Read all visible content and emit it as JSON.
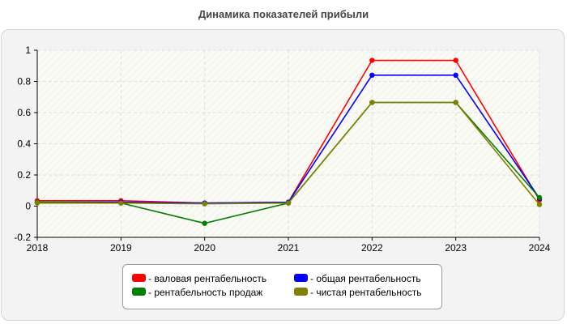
{
  "chart_data": {
    "type": "line",
    "title": "Динамика показателей прибыли",
    "x": [
      "2018",
      "2019",
      "2020",
      "2021",
      "2022",
      "2023",
      "2024"
    ],
    "ylim": [
      -0.2,
      1
    ],
    "yticks": [
      "-0.2",
      "0",
      "0.2",
      "0.4",
      "0.6",
      "0.8",
      "1"
    ],
    "grid": true,
    "legend_position": "bottom",
    "series": [
      {
        "name": "- валовая рентабельность",
        "color": "#ff0000",
        "values": [
          0.035,
          0.035,
          0.02,
          0.025,
          0.935,
          0.935,
          0.04
        ]
      },
      {
        "name": "- общая рентабельность",
        "color": "#0000ff",
        "values": [
          0.025,
          0.025,
          0.02,
          0.025,
          0.84,
          0.84,
          0.05
        ]
      },
      {
        "name": "- рентабельность продаж",
        "color": "#008000",
        "values": [
          0.025,
          0.02,
          -0.11,
          0.02,
          0.665,
          0.665,
          0.055
        ]
      },
      {
        "name": "- чистая рентабельность",
        "color": "#808000",
        "values": [
          0.02,
          0.02,
          0.015,
          0.02,
          0.665,
          0.665,
          0.01
        ]
      }
    ]
  }
}
